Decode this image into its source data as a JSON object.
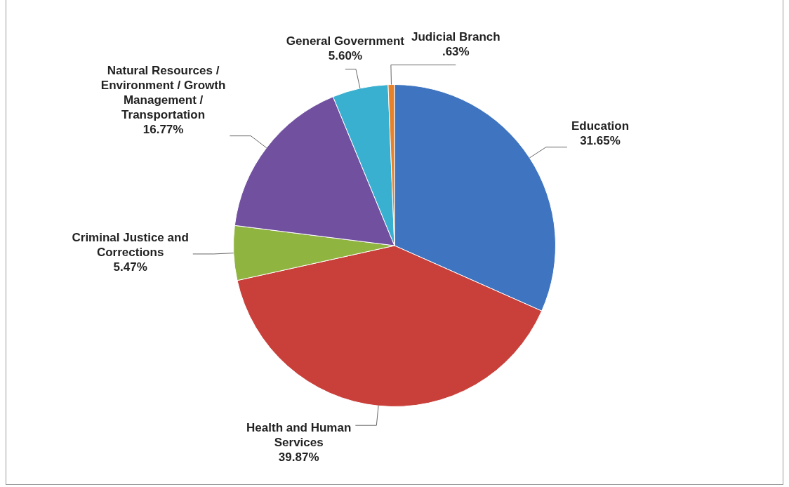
{
  "chart_data": {
    "type": "pie",
    "categories": [
      "Education",
      "Health and Human Services",
      "Criminal Justice and Corrections",
      "Natural Resources / Environment / Growth Management / Transportation",
      "General Government",
      "Judicial Branch"
    ],
    "values": [
      31.65,
      39.87,
      5.47,
      16.77,
      5.6,
      0.63
    ],
    "value_labels": [
      "31.65%",
      "39.87%",
      "5.47%",
      "16.77%",
      "5.60%",
      ".63%"
    ],
    "colors": [
      "#3f74c0",
      "#c9403a",
      "#8fb43f",
      "#7150a0",
      "#3ab0d0",
      "#e8822a"
    ],
    "legend": false
  }
}
